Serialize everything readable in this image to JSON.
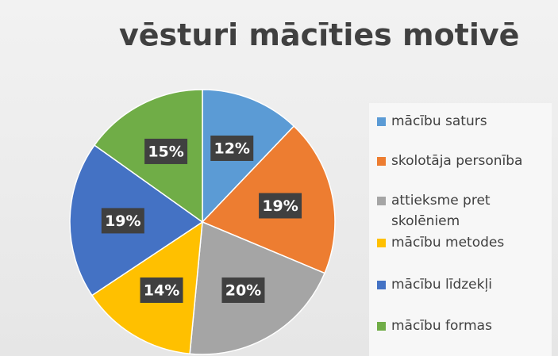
{
  "chart_data": {
    "type": "pie",
    "title": "vēsturi mācīties motivē",
    "categories": [
      "mācību saturs",
      "skolotāja personība",
      "attieksme pret skolēniem",
      "mācību metodes",
      "mācību līdzekļi",
      "mācību formas"
    ],
    "values": [
      12,
      19,
      20,
      14,
      19,
      15
    ],
    "value_labels": [
      "12%",
      "19%",
      "20%",
      "14%",
      "19%",
      "15%"
    ],
    "colors": [
      "#5b9bd5",
      "#ed7d31",
      "#a5a5a5",
      "#ffc000",
      "#4472c4",
      "#70ad47"
    ],
    "legend": "right"
  }
}
